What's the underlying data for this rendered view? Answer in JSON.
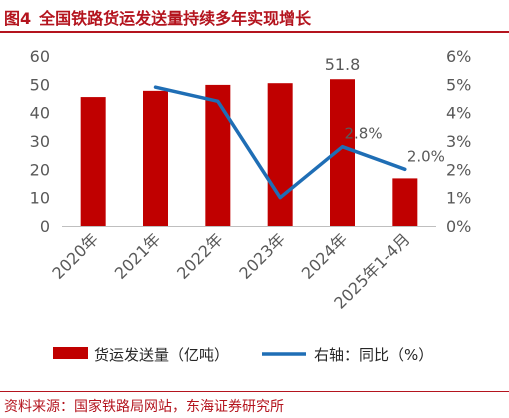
{
  "figure": {
    "number": "图4",
    "title": "全国铁路货运发送量持续多年实现增长"
  },
  "source": "资料来源：国家铁路局网站，东海证券研究所",
  "colors": {
    "accent": "#b4141e",
    "bar": "#c00000",
    "line": "#1f6eb5",
    "axis_text": "#595959",
    "axis_line": "#bfbfbf"
  },
  "chart_data": {
    "type": "bar",
    "title": "全国铁路货运发送量持续多年实现增长",
    "categories": [
      "2020年",
      "2021年",
      "2022年",
      "2023年",
      "2024年",
      "2025年1-4月"
    ],
    "y_left": {
      "ylim": [
        0,
        60
      ],
      "ticks": [
        "0",
        "10",
        "20",
        "30",
        "40",
        "50",
        "60"
      ]
    },
    "y_right": {
      "ylim": [
        0,
        6
      ],
      "ticks": [
        "0%",
        "1%",
        "2%",
        "3%",
        "4%",
        "5%",
        "6%"
      ]
    },
    "series": [
      {
        "name": "货运发送量（亿吨）",
        "type": "bar",
        "axis": "left",
        "values": [
          45.5,
          47.7,
          49.8,
          50.4,
          51.8,
          16.8
        ],
        "data_labels": [
          "",
          "",
          "",
          "",
          "51.8",
          ""
        ]
      },
      {
        "name": "右轴：同比（%）",
        "type": "line",
        "axis": "right",
        "values": [
          null,
          4.9,
          4.4,
          1.0,
          2.8,
          2.0
        ],
        "data_labels": [
          "",
          "",
          "",
          "",
          "2.8%",
          "2.0%"
        ]
      }
    ],
    "grid": false,
    "legend": "bottom"
  }
}
